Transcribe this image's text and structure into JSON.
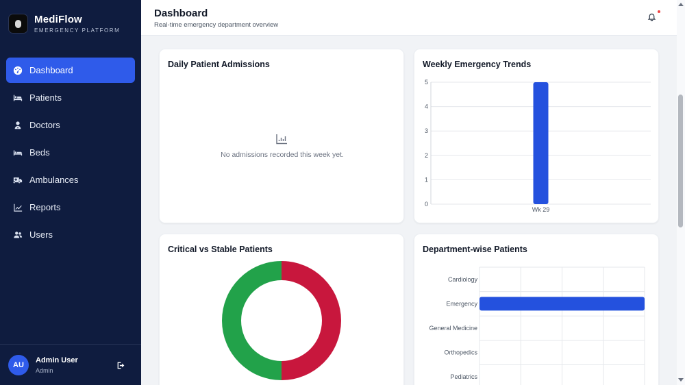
{
  "brand": {
    "name": "MediFlow",
    "subtitle": "EMERGENCY PLATFORM"
  },
  "sidebar": {
    "items": [
      {
        "label": "Dashboard",
        "icon": "dashboard-icon",
        "active": true
      },
      {
        "label": "Patients",
        "icon": "bed-patient-icon"
      },
      {
        "label": "Doctors",
        "icon": "doctor-icon"
      },
      {
        "label": "Beds",
        "icon": "bed-icon"
      },
      {
        "label": "Ambulances",
        "icon": "ambulance-icon"
      },
      {
        "label": "Reports",
        "icon": "chart-line-icon"
      },
      {
        "label": "Users",
        "icon": "users-icon"
      }
    ]
  },
  "user": {
    "initials": "AU",
    "name": "Admin User",
    "role": "Admin"
  },
  "header": {
    "title": "Dashboard",
    "subtitle": "Real-time emergency department overview"
  },
  "cards": {
    "admissions": {
      "title": "Daily Patient Admissions",
      "empty_text": "No admissions recorded this week yet."
    },
    "weekly": {
      "title": "Weekly Emergency Trends"
    },
    "critical": {
      "title": "Critical vs Stable Patients"
    },
    "department": {
      "title": "Department-wise Patients"
    }
  },
  "colors": {
    "accent": "#2f5bea",
    "bar": "#2451de",
    "critical": "#c8173d",
    "stable": "#22a24a",
    "sidebar": "#0f1c3f"
  },
  "chart_data": [
    {
      "type": "bar",
      "title": "Weekly Emergency Trends",
      "categories": [
        "Wk 29"
      ],
      "values": [
        5
      ],
      "ylim": [
        0,
        5
      ],
      "yticks": [
        0,
        1,
        2,
        3,
        4,
        5
      ],
      "grid": true
    },
    {
      "type": "pie",
      "title": "Critical vs Stable Patients",
      "donut": true,
      "slices": [
        {
          "color": "#c8173d",
          "value": 50
        },
        {
          "color": "#22a24a",
          "value": 50
        }
      ]
    },
    {
      "type": "bar",
      "orientation": "horizontal",
      "title": "Department-wise Patients",
      "categories": [
        "Cardiology",
        "Emergency",
        "General Medicine",
        "Orthopedics",
        "Pediatrics"
      ],
      "values": [
        0,
        1,
        0,
        0,
        0
      ],
      "xlim": [
        0,
        1
      ],
      "grid": true
    }
  ]
}
